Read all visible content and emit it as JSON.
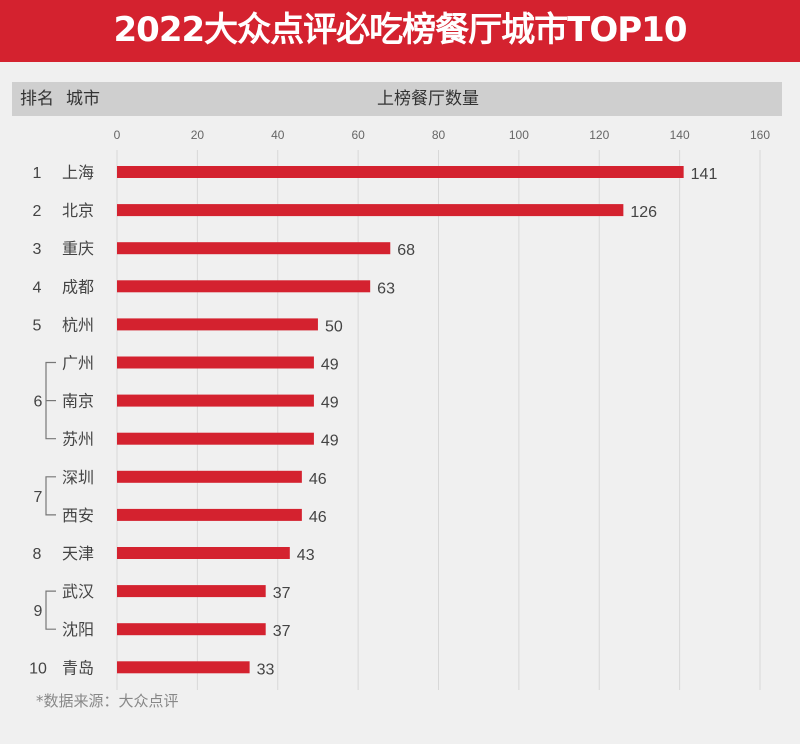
{
  "title": "2022大众点评必吃榜餐厅城市TOP10",
  "header": {
    "rank_label": "排名",
    "city_label": "城市",
    "value_label": "上榜餐厅数量"
  },
  "source": "*数据来源：大众点评",
  "colors": {
    "title_bg": "#d4222f",
    "bar": "#d4222f"
  },
  "chart_data": {
    "type": "bar",
    "orientation": "horizontal",
    "title": "2022大众点评必吃榜餐厅城市TOP10",
    "xlabel": "上榜餐厅数量",
    "xlim": [
      0,
      160
    ],
    "xticks": [
      0,
      20,
      40,
      60,
      80,
      100,
      120,
      140,
      160
    ],
    "grid": true,
    "categories": [
      "上海",
      "北京",
      "重庆",
      "成都",
      "杭州",
      "广州",
      "南京",
      "苏州",
      "深圳",
      "西安",
      "天津",
      "武汉",
      "沈阳",
      "青岛"
    ],
    "ranks": [
      "1",
      "2",
      "3",
      "4",
      "5",
      "6",
      "6",
      "6",
      "7",
      "7",
      "8",
      "9",
      "9",
      "10"
    ],
    "values": [
      141,
      126,
      68,
      63,
      50,
      49,
      49,
      49,
      46,
      46,
      43,
      37,
      37,
      33
    ]
  }
}
